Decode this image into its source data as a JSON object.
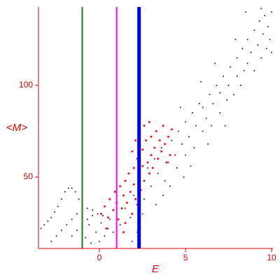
{
  "chart_data": {
    "type": "scatter",
    "xlabel": "E",
    "ylabel": "<M>",
    "xlim": [
      -3.54,
      10.08
    ],
    "ylim": [
      11.1,
      142.7
    ],
    "xticks": [
      0,
      5,
      10
    ],
    "yticks": [
      50,
      100
    ],
    "axis_color": "#e00000",
    "vlines": [
      {
        "x": -1,
        "color": "#1a7a1a"
      },
      {
        "x": 1,
        "color": "#ff00ff"
      },
      {
        "x": 2.3,
        "color": "#0000ff"
      }
    ],
    "series": [
      {
        "color": "#000000",
        "x": [
          -3.4,
          -3.2,
          -3.0,
          -2.8,
          -2.6,
          -2.4,
          -2.2,
          -2.0,
          -1.8,
          -1.6,
          -1.4,
          -1.2,
          -1.0,
          -2.8,
          -2.5,
          -2.2,
          -1.9,
          -1.6,
          -1.3,
          -1.0,
          -0.7,
          -0.4,
          -1.6,
          -1.3,
          -1.0,
          -0.7,
          -0.4,
          -0.1,
          -0.5,
          0,
          -0.2,
          0.3,
          0.5,
          -0.8,
          0.1,
          0.8,
          0.6,
          1.2,
          -0.6,
          0.2,
          2.0,
          2.3,
          2.6,
          2.8,
          3.0,
          3.2,
          3.4,
          3.6,
          3.8,
          4.0,
          4.2,
          4.4,
          4.5,
          4.6,
          4.8,
          5.0,
          5.0,
          5.2,
          5.4,
          5.5,
          5.6,
          5.8,
          6.0,
          6.0,
          6.2,
          6.4,
          6.5,
          6.6,
          6.8,
          7.0,
          7.0,
          7.2,
          7.4,
          7.5,
          7.6,
          7.8,
          8.0,
          8.0,
          8.2,
          8.3,
          8.4,
          8.6,
          8.6,
          8.8,
          9.0,
          9.0,
          9.2,
          9.3,
          9.4,
          9.5,
          9.6,
          9.7,
          9.8,
          9.9,
          10.0,
          10.0,
          8.5,
          9.4,
          3.3,
          3.7,
          4.1,
          4.9,
          5.3,
          6.3,
          7.3,
          2.5,
          1.8,
          1.5,
          2.2,
          1.0,
          1.9,
          6.7,
          5.9,
          4.7,
          7.9
        ],
        "values": [
          22,
          24,
          26,
          28,
          31,
          34,
          38,
          42,
          44,
          44,
          42,
          38,
          34,
          15,
          18,
          21,
          24,
          27,
          30,
          32,
          33,
          32,
          18,
          21,
          24,
          27,
          29,
          30,
          14,
          15,
          20,
          18,
          22,
          17,
          25,
          20,
          27,
          24,
          24,
          29,
          40,
          50,
          38,
          55,
          45,
          60,
          52,
          66,
          48,
          58,
          70,
          62,
          55,
          75,
          68,
          80,
          62,
          72,
          85,
          66,
          78,
          90,
          75,
          88,
          82,
          95,
          78,
          90,
          100,
          85,
          96,
          105,
          92,
          100,
          110,
          95,
          105,
          115,
          100,
          120,
          108,
          125,
          112,
          118,
          130,
          108,
          122,
          135,
          115,
          128,
          138,
          120,
          132,
          125,
          118,
          140,
          140,
          142,
          35,
          40,
          45,
          50,
          56,
          68,
          78,
          30,
          28,
          33,
          20,
          15,
          15,
          112,
          102,
          88,
          125
        ]
      },
      {
        "color": "#ff0000",
        "x": [
          0.1,
          0.3,
          0.5,
          0.6,
          0.8,
          0.9,
          1.0,
          1.1,
          1.2,
          1.3,
          1.4,
          1.5,
          1.6,
          1.7,
          1.8,
          1.9,
          2.0,
          2.0,
          2.1,
          2.2,
          2.3,
          2.4,
          2.5,
          2.5,
          2.6,
          2.7,
          2.8,
          2.9,
          3.0,
          3.0,
          3.1,
          3.2,
          3.3,
          3.4,
          3.5,
          3.6,
          3.7,
          3.8,
          4.0,
          4.1,
          1.5,
          0.4,
          2.2,
          1.9,
          2.6,
          3.9,
          4.2,
          1.4,
          2.1,
          2.9
        ],
        "values": [
          30,
          34,
          28,
          38,
          32,
          42,
          36,
          27,
          45,
          33,
          40,
          48,
          36,
          52,
          42,
          30,
          55,
          46,
          38,
          60,
          50,
          43,
          65,
          56,
          48,
          70,
          58,
          52,
          72,
          62,
          55,
          66,
          75,
          60,
          70,
          64,
          78,
          68,
          72,
          62,
          25,
          22,
          35,
          64,
          78,
          58,
          76,
          20,
          70,
          80
        ]
      }
    ]
  }
}
